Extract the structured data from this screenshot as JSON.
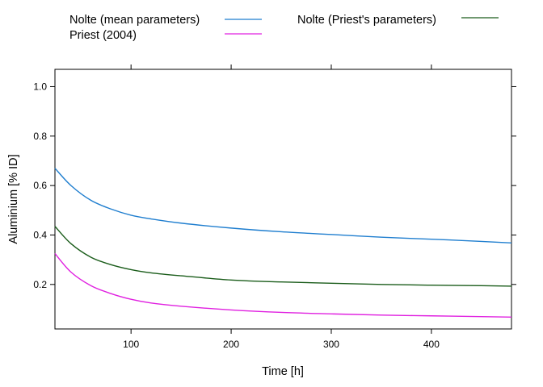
{
  "chart_data": {
    "type": "line",
    "title": "",
    "xlabel": "Time [h]",
    "ylabel": "Aluminium [% ID]",
    "xlim": [
      24,
      480
    ],
    "ylim": [
      0.02,
      1.07
    ],
    "x_ticks": [
      100,
      200,
      300,
      400
    ],
    "y_ticks": [
      0.2,
      0.4,
      0.6,
      0.8,
      1.0
    ],
    "x_tick_labels": [
      "100",
      "200",
      "300",
      "400"
    ],
    "y_tick_labels": [
      "0.2",
      "0.4",
      "0.6",
      "0.8",
      "1.0"
    ],
    "grid": false,
    "legend_position": "top",
    "series": [
      {
        "name": "Nolte (mean parameters)",
        "color": "#1f7ecf",
        "x": [
          24,
          40,
          60,
          80,
          100,
          120,
          150,
          200,
          250,
          300,
          350,
          400,
          450,
          480
        ],
        "values": [
          0.67,
          0.6,
          0.54,
          0.505,
          0.48,
          0.465,
          0.448,
          0.428,
          0.413,
          0.402,
          0.391,
          0.383,
          0.374,
          0.368
        ]
      },
      {
        "name": "Nolte (Priest's parameters)",
        "color": "#1a5c1a",
        "x": [
          24,
          40,
          60,
          80,
          100,
          120,
          150,
          200,
          250,
          300,
          350,
          400,
          450,
          480
        ],
        "values": [
          0.435,
          0.365,
          0.31,
          0.28,
          0.26,
          0.247,
          0.235,
          0.218,
          0.21,
          0.205,
          0.2,
          0.197,
          0.195,
          0.193
        ]
      },
      {
        "name": "Priest (2004)",
        "color": "#e020e0",
        "x": [
          24,
          40,
          60,
          80,
          100,
          120,
          150,
          200,
          250,
          300,
          350,
          400,
          450,
          480
        ],
        "values": [
          0.325,
          0.25,
          0.195,
          0.163,
          0.14,
          0.125,
          0.112,
          0.097,
          0.087,
          0.081,
          0.076,
          0.073,
          0.07,
          0.068
        ]
      }
    ]
  }
}
